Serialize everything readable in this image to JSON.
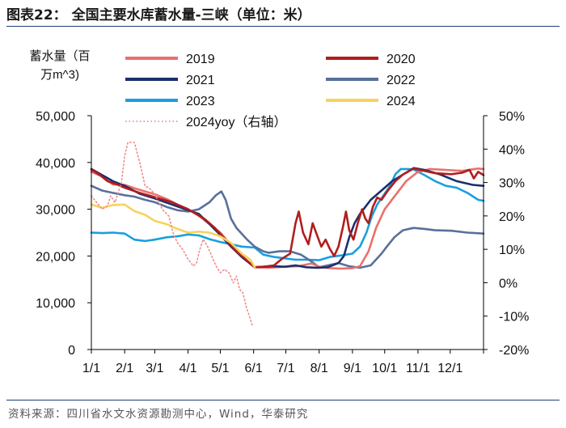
{
  "title": "图表22：  全国主要水库蓄水量-三峡（单位：米）",
  "source": "资料来源：四川省水文水资源勘测中心，Wind，华泰研究",
  "chart_data": {
    "type": "line",
    "left_axis_label": "蓄水量（百万m^3)",
    "left_axis_label_lines": [
      "蓄水量（百",
      "万m^3)"
    ],
    "x_ticks": [
      "1/1",
      "2/1",
      "3/1",
      "4/1",
      "5/1",
      "6/1",
      "7/1",
      "8/1",
      "9/1",
      "10/1",
      "11/1",
      "12/1"
    ],
    "ylim_left": [
      0,
      50000
    ],
    "ylim_right": [
      -0.2,
      0.5
    ],
    "y_ticks_left": [
      "0",
      "10,000",
      "20,000",
      "30,000",
      "40,000",
      "50,000"
    ],
    "y_ticks_right": [
      "-20%",
      "-10%",
      "0%",
      "10%",
      "20%",
      "30%",
      "40%",
      "50%"
    ],
    "series": [
      {
        "name": "2019",
        "color": "#e8706d",
        "axis": "left",
        "style": "solid",
        "points": [
          [
            0,
            38000
          ],
          [
            10,
            37000
          ],
          [
            20,
            35300
          ],
          [
            31,
            35200
          ],
          [
            40,
            34500
          ],
          [
            50,
            33800
          ],
          [
            59,
            33200
          ],
          [
            70,
            32200
          ],
          [
            80,
            31000
          ],
          [
            90,
            30000
          ],
          [
            100,
            28600
          ],
          [
            110,
            26800
          ],
          [
            120,
            25000
          ],
          [
            130,
            22300
          ],
          [
            140,
            19800
          ],
          [
            152,
            17600
          ],
          [
            165,
            17500
          ],
          [
            180,
            17700
          ],
          [
            192,
            17800
          ],
          [
            205,
            18400
          ],
          [
            212,
            17700
          ],
          [
            222,
            17400
          ],
          [
            232,
            17300
          ],
          [
            243,
            17400
          ],
          [
            250,
            17800
          ],
          [
            258,
            21000
          ],
          [
            265,
            26000
          ],
          [
            273,
            30000
          ],
          [
            283,
            33000
          ],
          [
            293,
            36000
          ],
          [
            304,
            38000
          ],
          [
            315,
            38600
          ],
          [
            330,
            38400
          ],
          [
            345,
            38200
          ],
          [
            360,
            38700
          ],
          [
            365,
            38600
          ]
        ]
      },
      {
        "name": "2020",
        "color": "#b01e1e",
        "axis": "left",
        "style": "solid",
        "points": [
          [
            0,
            38500
          ],
          [
            8,
            37300
          ],
          [
            15,
            36000
          ],
          [
            25,
            35200
          ],
          [
            31,
            34600
          ],
          [
            45,
            33500
          ],
          [
            59,
            32600
          ],
          [
            75,
            31500
          ],
          [
            90,
            30000
          ],
          [
            105,
            28000
          ],
          [
            115,
            26000
          ],
          [
            125,
            23500
          ],
          [
            135,
            21000
          ],
          [
            145,
            19000
          ],
          [
            152,
            17600
          ],
          [
            160,
            17700
          ],
          [
            170,
            18000
          ],
          [
            178,
            19500
          ],
          [
            185,
            20500
          ],
          [
            190,
            27000
          ],
          [
            193,
            29500
          ],
          [
            197,
            25000
          ],
          [
            202,
            22500
          ],
          [
            206,
            27000
          ],
          [
            210,
            24500
          ],
          [
            214,
            22000
          ],
          [
            218,
            23500
          ],
          [
            222,
            21500
          ],
          [
            226,
            20000
          ],
          [
            230,
            22000
          ],
          [
            234,
            26000
          ],
          [
            237,
            29500
          ],
          [
            240,
            25500
          ],
          [
            244,
            23500
          ],
          [
            248,
            27000
          ],
          [
            252,
            30000
          ],
          [
            255,
            28000
          ],
          [
            258,
            27000
          ],
          [
            262,
            30500
          ],
          [
            266,
            32500
          ],
          [
            270,
            32000
          ],
          [
            276,
            34000
          ],
          [
            283,
            36000
          ],
          [
            290,
            37400
          ],
          [
            300,
            38700
          ],
          [
            310,
            38200
          ],
          [
            320,
            37700
          ],
          [
            335,
            37500
          ],
          [
            345,
            37800
          ],
          [
            352,
            38400
          ],
          [
            356,
            36600
          ],
          [
            360,
            38000
          ],
          [
            365,
            37300
          ]
        ]
      },
      {
        "name": "2021",
        "color": "#1b2f6b",
        "axis": "left",
        "style": "solid",
        "points": [
          [
            0,
            38600
          ],
          [
            10,
            37300
          ],
          [
            20,
            36000
          ],
          [
            31,
            35000
          ],
          [
            45,
            33300
          ],
          [
            59,
            32300
          ],
          [
            75,
            31000
          ],
          [
            90,
            29800
          ],
          [
            100,
            29000
          ],
          [
            110,
            26800
          ],
          [
            120,
            24500
          ],
          [
            130,
            22000
          ],
          [
            140,
            19800
          ],
          [
            152,
            17600
          ],
          [
            160,
            17700
          ],
          [
            170,
            17800
          ],
          [
            180,
            17700
          ],
          [
            190,
            18000
          ],
          [
            200,
            17600
          ],
          [
            210,
            17500
          ],
          [
            220,
            17600
          ],
          [
            230,
            18500
          ],
          [
            235,
            20000
          ],
          [
            240,
            24000
          ],
          [
            245,
            27000
          ],
          [
            250,
            29000
          ],
          [
            260,
            32000
          ],
          [
            270,
            34000
          ],
          [
            280,
            36000
          ],
          [
            290,
            37400
          ],
          [
            300,
            38800
          ],
          [
            310,
            38400
          ],
          [
            325,
            37400
          ],
          [
            340,
            36000
          ],
          [
            355,
            35200
          ],
          [
            365,
            35000
          ]
        ]
      },
      {
        "name": "2022",
        "color": "#59709b",
        "axis": "left",
        "style": "solid",
        "points": [
          [
            0,
            35000
          ],
          [
            10,
            34000
          ],
          [
            20,
            33500
          ],
          [
            31,
            33000
          ],
          [
            40,
            32700
          ],
          [
            50,
            32000
          ],
          [
            59,
            31500
          ],
          [
            70,
            30500
          ],
          [
            80,
            29800
          ],
          [
            90,
            29500
          ],
          [
            100,
            30000
          ],
          [
            110,
            31500
          ],
          [
            116,
            33000
          ],
          [
            121,
            33800
          ],
          [
            125,
            32000
          ],
          [
            130,
            28000
          ],
          [
            135,
            26000
          ],
          [
            145,
            23500
          ],
          [
            152,
            22000
          ],
          [
            160,
            21000
          ],
          [
            165,
            20700
          ],
          [
            175,
            21000
          ],
          [
            185,
            21000
          ],
          [
            195,
            20300
          ],
          [
            205,
            18800
          ],
          [
            212,
            17600
          ],
          [
            220,
            18000
          ],
          [
            230,
            18500
          ],
          [
            240,
            17800
          ],
          [
            250,
            17500
          ],
          [
            260,
            18000
          ],
          [
            270,
            20500
          ],
          [
            275,
            22000
          ],
          [
            282,
            24000
          ],
          [
            290,
            25500
          ],
          [
            300,
            26000
          ],
          [
            310,
            25800
          ],
          [
            320,
            25500
          ],
          [
            335,
            25400
          ],
          [
            350,
            25000
          ],
          [
            365,
            24800
          ]
        ]
      },
      {
        "name": "2023",
        "color": "#1a9fdf",
        "axis": "left",
        "style": "solid",
        "points": [
          [
            0,
            25000
          ],
          [
            10,
            24900
          ],
          [
            20,
            25000
          ],
          [
            31,
            24800
          ],
          [
            40,
            23500
          ],
          [
            50,
            23200
          ],
          [
            59,
            23500
          ],
          [
            70,
            24000
          ],
          [
            80,
            24200
          ],
          [
            90,
            24600
          ],
          [
            100,
            24400
          ],
          [
            110,
            23600
          ],
          [
            120,
            23000
          ],
          [
            130,
            22500
          ],
          [
            140,
            22000
          ],
          [
            152,
            21800
          ],
          [
            160,
            20300
          ],
          [
            170,
            19800
          ],
          [
            180,
            19500
          ],
          [
            190,
            19200
          ],
          [
            200,
            19200
          ],
          [
            212,
            19100
          ],
          [
            222,
            19800
          ],
          [
            232,
            20100
          ],
          [
            243,
            20500
          ],
          [
            250,
            22000
          ],
          [
            256,
            25000
          ],
          [
            261,
            28500
          ],
          [
            266,
            31000
          ],
          [
            272,
            33000
          ],
          [
            278,
            35000
          ],
          [
            283,
            37500
          ],
          [
            288,
            38600
          ],
          [
            295,
            38600
          ],
          [
            300,
            38500
          ],
          [
            310,
            37300
          ],
          [
            320,
            36000
          ],
          [
            330,
            35000
          ],
          [
            340,
            34600
          ],
          [
            350,
            33500
          ],
          [
            360,
            32000
          ],
          [
            365,
            31800
          ]
        ]
      },
      {
        "name": "2024",
        "color": "#f6d35c",
        "axis": "left",
        "style": "solid",
        "points": [
          [
            0,
            31000
          ],
          [
            10,
            30300
          ],
          [
            20,
            30900
          ],
          [
            31,
            31000
          ],
          [
            40,
            29600
          ],
          [
            50,
            28800
          ],
          [
            59,
            27500
          ],
          [
            70,
            26800
          ],
          [
            80,
            25800
          ],
          [
            90,
            25000
          ],
          [
            100,
            25200
          ],
          [
            110,
            25000
          ],
          [
            120,
            24200
          ],
          [
            130,
            22800
          ],
          [
            140,
            20500
          ],
          [
            148,
            19200
          ],
          [
            152,
            17600
          ]
        ]
      },
      {
        "name": "2024yoy（右轴）",
        "color": "#f08a8a",
        "axis": "right",
        "style": "dotted",
        "points": [
          [
            0,
            0.26
          ],
          [
            5,
            0.24
          ],
          [
            10,
            0.22
          ],
          [
            15,
            0.23
          ],
          [
            18,
            0.26
          ],
          [
            22,
            0.24
          ],
          [
            28,
            0.3
          ],
          [
            31,
            0.38
          ],
          [
            34,
            0.42
          ],
          [
            40,
            0.42
          ],
          [
            45,
            0.36
          ],
          [
            50,
            0.29
          ],
          [
            55,
            0.28
          ],
          [
            60,
            0.26
          ],
          [
            66,
            0.22
          ],
          [
            72,
            0.2
          ],
          [
            76,
            0.15
          ],
          [
            80,
            0.12
          ],
          [
            85,
            0.1
          ],
          [
            90,
            0.07
          ],
          [
            95,
            0.05
          ],
          [
            98,
            0.06
          ],
          [
            101,
            0.1
          ],
          [
            104,
            0.13
          ],
          [
            108,
            0.11
          ],
          [
            112,
            0.08
          ],
          [
            116,
            0.05
          ],
          [
            120,
            0.03
          ],
          [
            124,
            0.04
          ],
          [
            128,
            0.03
          ],
          [
            132,
            0.0
          ],
          [
            135,
            0.02
          ],
          [
            138,
            -0.02
          ],
          [
            141,
            -0.03
          ],
          [
            144,
            -0.07
          ],
          [
            147,
            -0.1
          ],
          [
            150,
            -0.13
          ]
        ]
      }
    ]
  }
}
